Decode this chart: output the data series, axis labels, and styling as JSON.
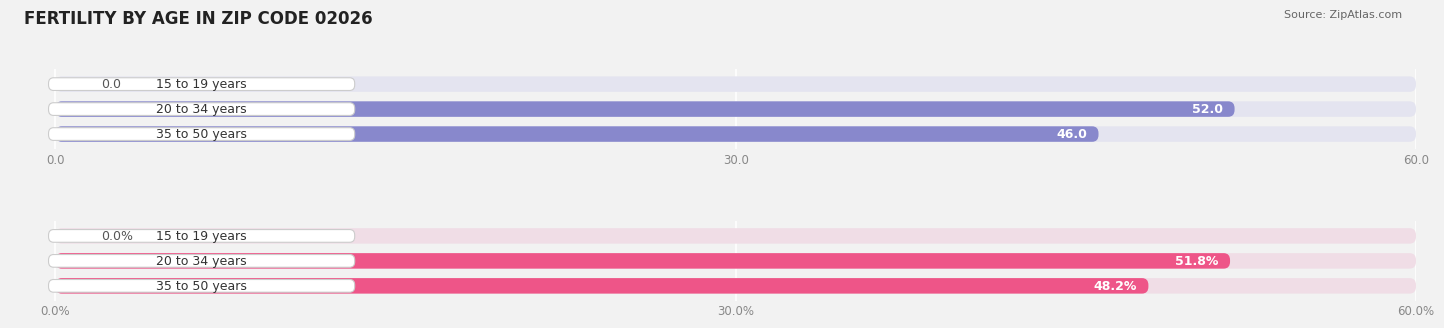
{
  "title": "FERTILITY BY AGE IN ZIP CODE 02026",
  "source": "Source: ZipAtlas.com",
  "top_chart": {
    "categories": [
      "15 to 19 years",
      "20 to 34 years",
      "35 to 50 years"
    ],
    "values": [
      0.0,
      52.0,
      46.0
    ],
    "bar_color": "#8888cc",
    "label_box_color": "#ffffff",
    "bg_bar_color": "#e4e4f0",
    "xlim": [
      0,
      60
    ],
    "xticks": [
      0.0,
      30.0,
      60.0
    ],
    "xticklabels": [
      "0.0",
      "30.0",
      "60.0"
    ],
    "label_inside_threshold": 5,
    "value_label_outside_color": "#555555"
  },
  "bottom_chart": {
    "categories": [
      "15 to 19 years",
      "20 to 34 years",
      "35 to 50 years"
    ],
    "values": [
      0.0,
      51.8,
      48.2
    ],
    "bar_color": "#ee5588",
    "label_box_color": "#ffffff",
    "bg_bar_color": "#f0dde6",
    "xlim": [
      0,
      60
    ],
    "xticks": [
      0.0,
      30.0,
      60.0
    ],
    "xticklabels": [
      "0.0%",
      "30.0%",
      "60.0%"
    ],
    "label_inside_threshold": 5,
    "value_label_outside_color": "#555555"
  },
  "bg_color": "#f2f2f2",
  "title_fontsize": 12,
  "source_fontsize": 8,
  "value_fontsize": 9,
  "tick_fontsize": 8.5,
  "category_fontsize": 9
}
